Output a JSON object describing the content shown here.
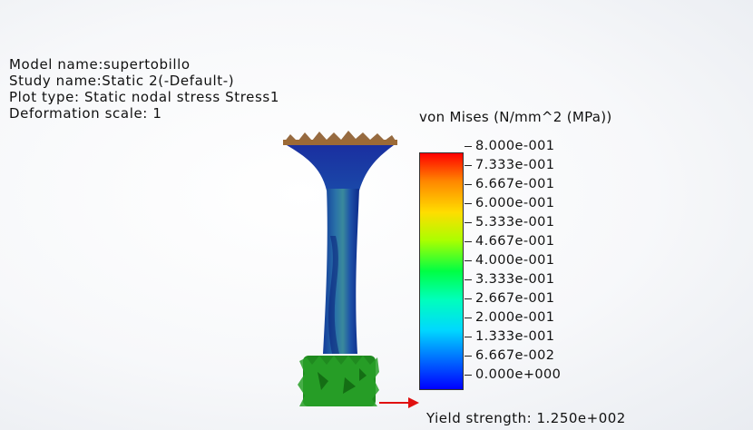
{
  "info": {
    "model_name": "Model name:supertobillo",
    "study_name": "Study name:Static 2(-Default-)",
    "plot_type": "Plot type: Static nodal stress Stress1",
    "deformation_scale": "Deformation scale: 1"
  },
  "legend": {
    "title": "von Mises (N/mm^2 (MPa))",
    "labels": [
      "8.000e-001",
      "7.333e-001",
      "6.667e-001",
      "6.000e-001",
      "5.333e-001",
      "4.667e-001",
      "4.000e-001",
      "3.333e-001",
      "2.667e-001",
      "2.000e-001",
      "1.333e-001",
      "6.667e-002",
      "0.000e+000"
    ],
    "colors": [
      "#ff0000",
      "#ff8800",
      "#ffdd00",
      "#aaff00",
      "#00ff44",
      "#00ffbb",
      "#00d8ff",
      "#0070ff",
      "#0000ff"
    ]
  },
  "yield_strength": "Yield strength: 1.250e+002",
  "colors": {
    "arrow": "#e01010",
    "fixture": "#8b5a2b",
    "model_blue": "#1a3ea8",
    "model_teal": "#2a7f9a",
    "model_green": "#1f8a1f"
  }
}
